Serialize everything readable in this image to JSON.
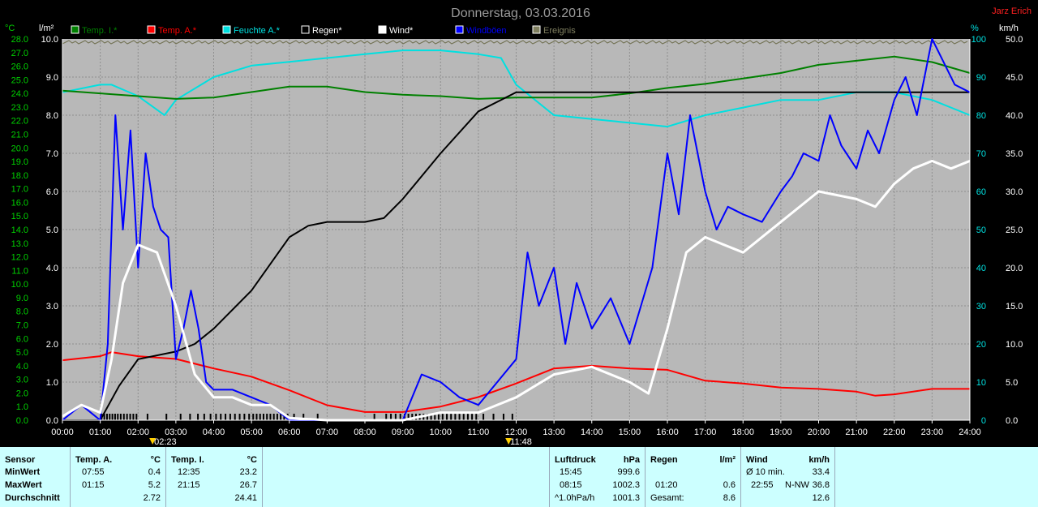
{
  "header": {
    "title": "Donnerstag, 03.03.2016",
    "author": "Jarz Erich"
  },
  "axis_units": {
    "left_temp": "°C",
    "left_rain": "l/m²",
    "right_humidity": "%",
    "right_wind": "km/h"
  },
  "legend": [
    {
      "label": "Temp. I.*",
      "color": "#008000"
    },
    {
      "label": "Temp. A.*",
      "color": "#ff0000"
    },
    {
      "label": "Feuchte A.*",
      "color": "#00e0e0"
    },
    {
      "label": "Regen*",
      "color": "#000000"
    },
    {
      "label": "Wind*",
      "color": "#ffffff"
    },
    {
      "label": "Windböen",
      "color": "#0000ff"
    },
    {
      "label": "Ereignis",
      "color": "#808060"
    }
  ],
  "markers": [
    "02:23",
    "11:48"
  ],
  "chart_data": {
    "type": "line",
    "title": "Donnerstag, 03.03.2016",
    "x_ticks": [
      "00:00",
      "01:00",
      "02:00",
      "03:00",
      "04:00",
      "05:00",
      "06:00",
      "07:00",
      "08:00",
      "09:00",
      "10:00",
      "11:00",
      "12:00",
      "13:00",
      "14:00",
      "15:00",
      "16:00",
      "17:00",
      "18:00",
      "19:00",
      "20:00",
      "21:00",
      "22:00",
      "23:00",
      "24:00"
    ],
    "temp_ticks": [
      "0.0",
      "1.0",
      "2.0",
      "3.0",
      "4.0",
      "5.0",
      "6.0",
      "7.0",
      "8.0",
      "9.0",
      "10.0",
      "11.0",
      "12.0",
      "13.0",
      "14.0",
      "15.0",
      "16.0",
      "17.0",
      "18.0",
      "19.0",
      "20.0",
      "21.0",
      "22.0",
      "23.0",
      "24.0",
      "25.0",
      "26.0",
      "27.0",
      "28.0"
    ],
    "rain_ticks": [
      "0.0",
      "1.0",
      "2.0",
      "3.0",
      "4.0",
      "5.0",
      "6.0",
      "7.0",
      "8.0",
      "9.0",
      "10.0"
    ],
    "humidity_ticks": [
      "0",
      "10",
      "20",
      "30",
      "40",
      "50",
      "60",
      "70",
      "80",
      "90",
      "100"
    ],
    "wind_ticks": [
      "0.0",
      "5.0",
      "10.0",
      "15.0",
      "20.0",
      "25.0",
      "30.0",
      "35.0",
      "40.0",
      "45.0",
      "50.0"
    ],
    "temp_range": [
      0,
      28
    ],
    "rain_range": [
      0,
      10
    ],
    "humidity_range": [
      0,
      100
    ],
    "wind_range": [
      0,
      50
    ],
    "x_range_hours": [
      0,
      24
    ],
    "grid": true,
    "series": [
      {
        "name": "Temp. I.*",
        "color": "#008000",
        "axis": "temp",
        "x": [
          0,
          1,
          2,
          3,
          4,
          5,
          6,
          7,
          8,
          9,
          10,
          11,
          12,
          13,
          14,
          15,
          16,
          17,
          18,
          19,
          20,
          21,
          22,
          23,
          24
        ],
        "y": [
          24.2,
          24.0,
          23.8,
          23.6,
          23.7,
          24.1,
          24.5,
          24.5,
          24.1,
          23.9,
          23.8,
          23.6,
          23.7,
          23.7,
          23.7,
          24.0,
          24.4,
          24.7,
          25.1,
          25.5,
          26.1,
          26.4,
          26.7,
          26.3,
          25.5
        ]
      },
      {
        "name": "Temp. A.*",
        "color": "#ff0000",
        "axis": "temp",
        "x": [
          0,
          1,
          1.3,
          2,
          3,
          4,
          5,
          6,
          7,
          8,
          9,
          10,
          11,
          12,
          13,
          14,
          15,
          16,
          17,
          18,
          19,
          20,
          21,
          21.5,
          22,
          23,
          24
        ],
        "y": [
          4.4,
          4.7,
          5.0,
          4.7,
          4.5,
          3.8,
          3.2,
          2.2,
          1.1,
          0.6,
          0.6,
          1.0,
          1.7,
          2.7,
          3.8,
          4.0,
          3.8,
          3.7,
          2.9,
          2.7,
          2.4,
          2.3,
          2.1,
          1.8,
          1.9,
          2.3,
          2.3
        ]
      },
      {
        "name": "Feuchte A.*",
        "color": "#00e0e0",
        "axis": "humidity",
        "x": [
          0,
          1,
          1.3,
          2,
          2.7,
          3,
          4,
          5,
          6,
          7,
          8,
          9,
          10,
          11,
          11.6,
          12,
          13,
          14,
          15,
          16,
          17,
          18,
          19,
          20,
          21,
          22,
          23,
          24
        ],
        "y": [
          86,
          88,
          88,
          85,
          80,
          84,
          90,
          93,
          94,
          95,
          96,
          97,
          97,
          96,
          95,
          88,
          80,
          79,
          78,
          77,
          80,
          82,
          84,
          84,
          86,
          86,
          84,
          80
        ]
      },
      {
        "name": "Regen*",
        "color": "#000000",
        "axis": "rain",
        "x": [
          0,
          1,
          1.5,
          2,
          3,
          3.5,
          4,
          5,
          6,
          6.5,
          7,
          8,
          8.5,
          9,
          10,
          11,
          11.8,
          12,
          13,
          24
        ],
        "y": [
          0,
          0,
          0.9,
          1.6,
          1.8,
          2.0,
          2.4,
          3.4,
          4.8,
          5.1,
          5.2,
          5.2,
          5.3,
          5.8,
          7.0,
          8.1,
          8.5,
          8.6,
          8.6,
          8.6
        ]
      },
      {
        "name": "Wind*",
        "color": "#ffffff",
        "axis": "wind",
        "x": [
          0,
          0.5,
          1,
          1.3,
          1.6,
          2,
          2.5,
          3,
          3.5,
          4,
          4.5,
          5,
          5.5,
          6,
          7,
          8,
          9,
          10,
          11,
          12,
          13,
          14,
          15,
          15.5,
          16,
          16.5,
          17,
          18,
          19,
          20,
          21,
          21.5,
          22,
          22.5,
          23,
          23.5,
          24
        ],
        "y": [
          0.5,
          2,
          1,
          8,
          18,
          23,
          22,
          15,
          6,
          3,
          3,
          2,
          2,
          0.3,
          0,
          0,
          0,
          1,
          1,
          3,
          6,
          7,
          5,
          3.5,
          12,
          22,
          24,
          22,
          26,
          30,
          29,
          28,
          31,
          33,
          34,
          33,
          34
        ]
      },
      {
        "name": "Windböen",
        "color": "#0000ff",
        "axis": "wind",
        "x": [
          0,
          0.5,
          1,
          1.2,
          1.4,
          1.6,
          1.8,
          2,
          2.2,
          2.4,
          2.6,
          2.8,
          3,
          3.2,
          3.4,
          3.6,
          3.8,
          4,
          4.5,
          5,
          5.5,
          6,
          7,
          8,
          9,
          9.5,
          10,
          10.5,
          11,
          11.5,
          12,
          12.3,
          12.6,
          13,
          13.3,
          13.6,
          14,
          14.5,
          15,
          15.3,
          15.6,
          16,
          16.3,
          16.6,
          17,
          17.3,
          17.6,
          18,
          18.5,
          19,
          19.3,
          19.6,
          20,
          20.3,
          20.6,
          21,
          21.3,
          21.6,
          22,
          22.3,
          22.6,
          23,
          23.3,
          23.6,
          24
        ],
        "y": [
          0,
          2,
          0,
          10,
          40,
          25,
          38,
          20,
          35,
          28,
          25,
          24,
          8,
          12,
          17,
          12,
          5,
          4,
          4,
          3,
          2,
          0,
          0,
          0,
          0,
          6,
          5,
          3,
          2,
          5,
          8,
          22,
          15,
          20,
          10,
          18,
          12,
          16,
          10,
          15,
          20,
          35,
          27,
          40,
          30,
          25,
          28,
          27,
          26,
          30,
          32,
          35,
          34,
          40,
          36,
          33,
          38,
          35,
          42,
          45,
          40,
          50,
          47,
          44,
          43
        ]
      }
    ]
  },
  "stats": {
    "sensor_header": "Sensor",
    "row_labels": [
      "MinWert",
      "MaxWert",
      "Durchschnitt"
    ],
    "temp_a": {
      "title": "Temp. A.",
      "unit": "°C",
      "min_time": "07:55",
      "min": "0.4",
      "max_time": "01:15",
      "max": "5.2",
      "avg": "2.72"
    },
    "temp_i": {
      "title": "Temp. I.",
      "unit": "°C",
      "min_time": "12:35",
      "min": "23.2",
      "max_time": "21:15",
      "max": "26.7",
      "avg": "24.41"
    },
    "pressure": {
      "title": "Luftdruck",
      "unit": "hPa",
      "min_time": "15:45",
      "min": "999.6",
      "max_time": "08:15",
      "max": "1002.3",
      "trend_label": "^1.0hPa/h",
      "avg": "1001.3"
    },
    "rain": {
      "title": "Regen",
      "unit": "l/m²",
      "time": "01:20",
      "rate": "0.6",
      "total_label": "Gesamt:",
      "total": "8.6"
    },
    "wind": {
      "title": "Wind",
      "unit": "km/h",
      "avg10_label": "Ø 10 min.",
      "avg10": "33.4",
      "max_time": "22:55",
      "max_dir": "N-NW",
      "max": "36.8",
      "avg": "12.6"
    }
  }
}
